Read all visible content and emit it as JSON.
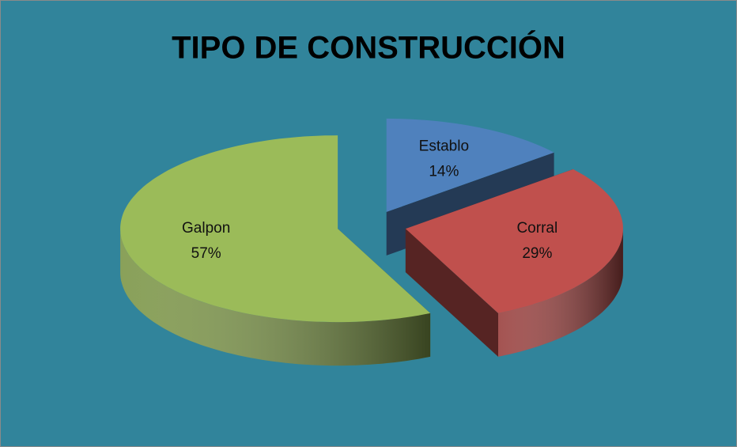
{
  "chart_data": {
    "type": "pie",
    "title": "TIPO DE CONSTRUCCIÓN",
    "categories": [
      "Establo",
      "Corral",
      "Galpon"
    ],
    "values": [
      14,
      29,
      57
    ],
    "value_labels": [
      "14%",
      "29%",
      "57%"
    ],
    "colors": [
      "#4f81bd",
      "#c0504d",
      "#9bbb59"
    ]
  }
}
